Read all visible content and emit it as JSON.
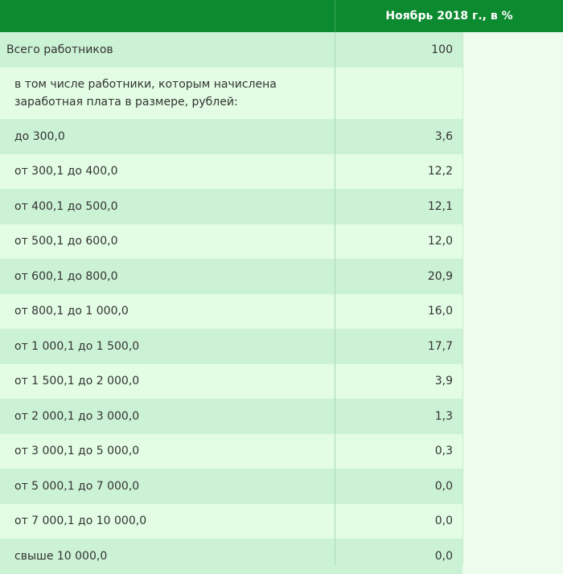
{
  "header": {
    "title": "Ноябрь 2018 г., в %"
  },
  "table": {
    "rows": [
      [
        "Всего работников",
        "100"
      ],
      [
        "в том числе работники, которым начислена заработная плата в размере, рублей:"
      ],
      [
        "до 300,0",
        "3,6"
      ],
      [
        "от 300,1 до 400,0",
        "12,2"
      ],
      [
        "от 400,1 до 500,0",
        "12,1"
      ],
      [
        "от 500,1 до 600,0",
        "12,0"
      ],
      [
        "от 600,1 до 800,0",
        "20,9"
      ],
      [
        "от 800,1 до 1 000,0",
        "16,0"
      ],
      [
        "от 1 000,1 до 1 500,0",
        "17,7"
      ],
      [
        "от 1 500,1 до 2 000,0",
        "3,9"
      ],
      [
        "от 2 000,1 до 3 000,0",
        "1,3"
      ],
      [
        "от 3 000,1 до 5 000,0",
        "0,3"
      ],
      [
        "от 5 000,1 до 7 000,0",
        "0,0"
      ],
      [
        "от 7 000,1 до 10 000,0",
        "0,0"
      ],
      [
        "свыше 10 000,0",
        "0,0"
      ]
    ]
  }
}
